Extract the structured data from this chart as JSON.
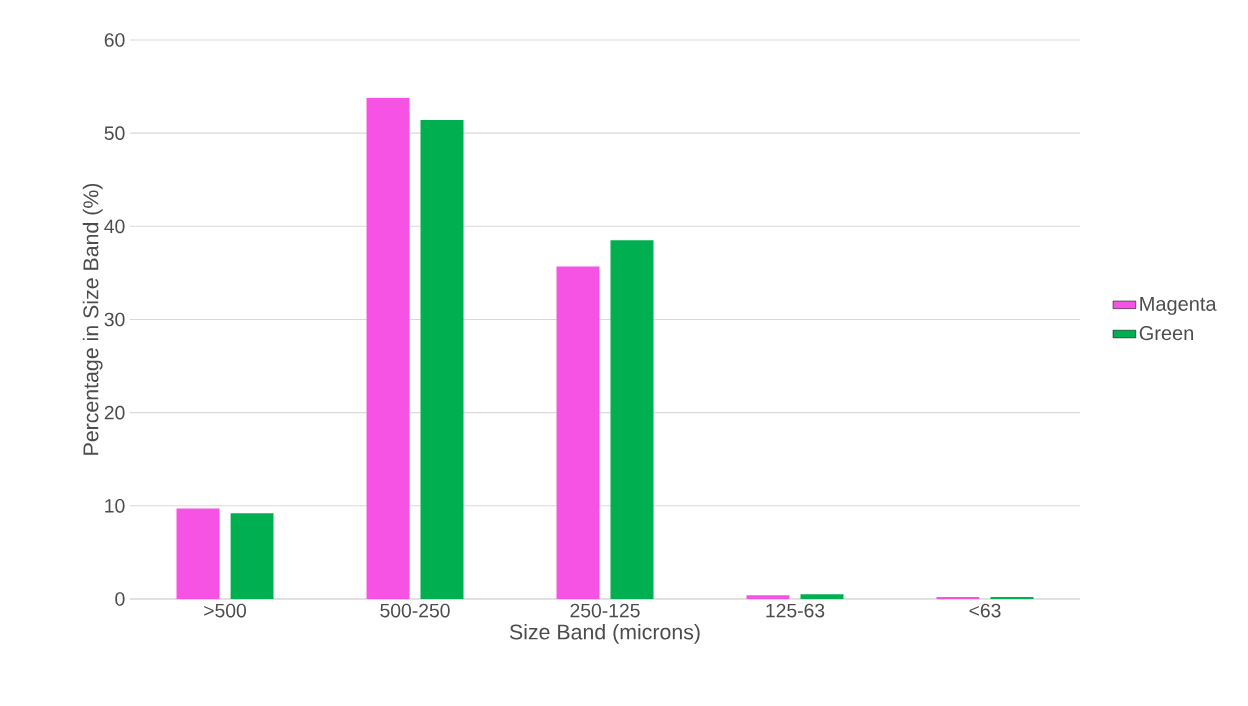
{
  "chart_data": {
    "type": "bar",
    "xlabel": "Size Band (microns)",
    "ylabel": "Percentage in Size Band (%)",
    "categories": [
      ">500",
      "500-250",
      "250-125",
      "125-63",
      "<63"
    ],
    "series": [
      {
        "name": "Magenta",
        "color": "#f652e4",
        "values": [
          9.7,
          53.8,
          35.7,
          0.4,
          0.2
        ]
      },
      {
        "name": "Green",
        "color": "#00b050",
        "values": [
          9.2,
          51.4,
          38.5,
          0.5,
          0.2
        ]
      }
    ],
    "ylim": [
      0,
      60
    ],
    "yticks": [
      0,
      10,
      20,
      30,
      40,
      50,
      60
    ],
    "grid": "y",
    "legend": "right"
  }
}
